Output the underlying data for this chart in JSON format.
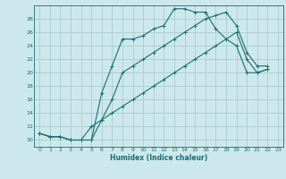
{
  "xlabel": "Humidex (Indice chaleur)",
  "ylabel": "",
  "bg_color": "#cde8ec",
  "grid_color": "#aacccc",
  "line_color": "#1a6e6e",
  "xlim": [
    -0.5,
    23.5
  ],
  "ylim": [
    9,
    30
  ],
  "xticks": [
    0,
    1,
    2,
    3,
    4,
    5,
    6,
    7,
    8,
    9,
    10,
    11,
    12,
    13,
    14,
    15,
    16,
    17,
    18,
    19,
    20,
    21,
    22,
    23
  ],
  "yticks": [
    10,
    12,
    14,
    16,
    18,
    20,
    22,
    24,
    26,
    28
  ],
  "line1_x": [
    0,
    1,
    2,
    3,
    4,
    5,
    6,
    7,
    8,
    9,
    10,
    11,
    12,
    13,
    14,
    15,
    16,
    17,
    18,
    19,
    20,
    21,
    22
  ],
  "line1_y": [
    11,
    10.5,
    10.5,
    10,
    10,
    10,
    17,
    21,
    25,
    25,
    25.5,
    26.5,
    27,
    29.5,
    29.5,
    29,
    29,
    26.5,
    25,
    24,
    20,
    20,
    20.5
  ],
  "line2_x": [
    0,
    1,
    2,
    3,
    4,
    5,
    6,
    7,
    8,
    9,
    10,
    11,
    12,
    13,
    14,
    15,
    16,
    17,
    18,
    19,
    20,
    21,
    22
  ],
  "line2_y": [
    11,
    10.5,
    10.5,
    10,
    10,
    10,
    13,
    16,
    20,
    21,
    22,
    23,
    24,
    25,
    26,
    27,
    28,
    28.5,
    29,
    27,
    23,
    21,
    21
  ],
  "line3_x": [
    0,
    1,
    2,
    3,
    4,
    5,
    6,
    7,
    8,
    9,
    10,
    11,
    12,
    13,
    14,
    15,
    16,
    17,
    18,
    19,
    20,
    21,
    22
  ],
  "line3_y": [
    11,
    10.5,
    10.5,
    10,
    10,
    12,
    13,
    14,
    15,
    16,
    17,
    18,
    19,
    20,
    21,
    22,
    23,
    24,
    25,
    26,
    22,
    20,
    20.5
  ]
}
